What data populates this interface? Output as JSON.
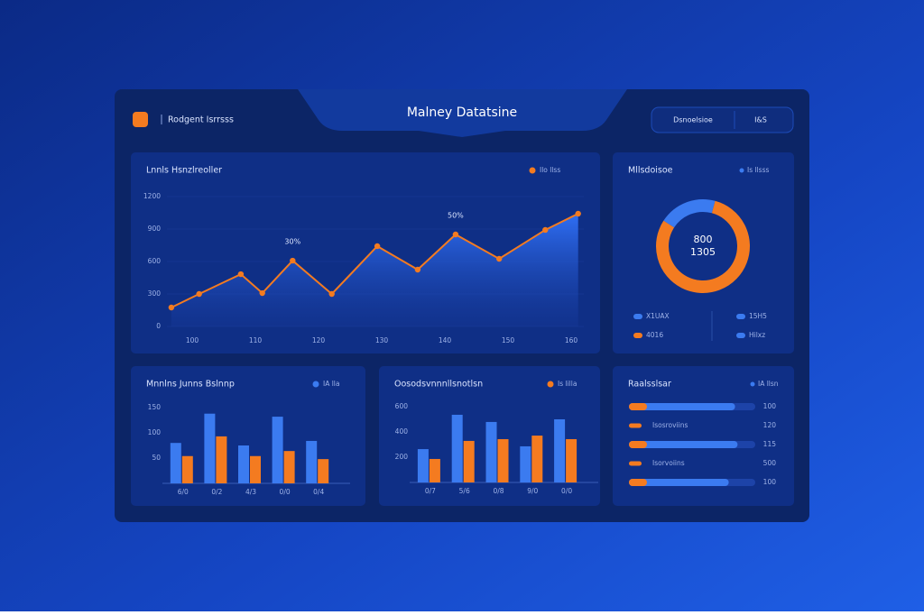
{
  "header": {
    "title": "Malney Datatsine",
    "brand": "Rodgent Isrrsss",
    "pill": [
      "Dsnoelsioe",
      "I&S"
    ]
  },
  "chart_data": [
    {
      "type": "line",
      "title": "Lnnls Hsnzlreoller",
      "series": [
        {
          "name": "Ilo llss",
          "color": "#f47b20",
          "x": [
            96.7,
            101.1,
            107.7,
            111.1,
            115.9,
            122.1,
            129.3,
            135.7,
            141.7,
            148.6,
            155.9,
            161.1
          ],
          "values": [
            175,
            300,
            483,
            308,
            608,
            300,
            742,
            525,
            850,
            625,
            892,
            1042
          ]
        }
      ],
      "xlim": [
        96,
        162
      ],
      "xticks": [
        100,
        110,
        120,
        130,
        140,
        150,
        160
      ],
      "ylim": [
        0,
        1200
      ],
      "yticks": [
        0,
        300,
        600,
        900,
        1200
      ],
      "grid": true,
      "annotations": [
        {
          "text": "30%",
          "x": 115.9,
          "y": 608
        },
        {
          "text": "50%",
          "x": 141.7,
          "y": 850
        }
      ]
    },
    {
      "type": "donut",
      "title": "Mllsdoisoe",
      "legend_label": "Is llsss",
      "values": [
        80,
        20
      ],
      "colors": [
        "#f47b20",
        "#3b7bf0"
      ],
      "center_text": [
        "800",
        "1305"
      ],
      "legend": [
        {
          "name": "X1UAX",
          "color": "#3b7bf0"
        },
        {
          "name": "15H5",
          "color": "#3b7bf0"
        },
        {
          "name": "4016",
          "color": "#f47b20"
        },
        {
          "name": "Hilxz",
          "color": "#3b7bf0"
        }
      ]
    },
    {
      "type": "bar",
      "title": "Mnnlns Junns Bslnnp",
      "categories": [
        "6/0",
        "0/2",
        "4/3",
        "0/0",
        "0/4"
      ],
      "series": [
        {
          "name": "IA lla",
          "color": "#3b7bf0",
          "values": [
            80,
            138,
            75,
            132,
            84
          ]
        },
        {
          "color": "#f47b20",
          "values": [
            54,
            93,
            54,
            64,
            48
          ]
        }
      ],
      "ylim": [
        0,
        150
      ],
      "yticks": [
        50,
        100,
        150
      ]
    },
    {
      "type": "bar",
      "title": "Oosodsvnnnllsnotlsn",
      "categories": [
        "0/7",
        "5/6",
        "0/8",
        "9/0",
        "0/0"
      ],
      "series": [
        {
          "color": "#3b7bf0",
          "values": [
            264,
            536,
            479,
            286,
            500
          ]
        },
        {
          "name": "Is lilla",
          "color": "#f47b20",
          "values": [
            186,
            329,
            343,
            371,
            343
          ]
        }
      ],
      "ylim": [
        0,
        600
      ],
      "yticks": [
        200,
        400,
        600
      ]
    },
    {
      "type": "progress",
      "title": "Raalsslsar",
      "legend_label": "IA llsn",
      "color": "#3b7bf0",
      "accent": "#f47b20",
      "xlim": [
        0,
        100
      ],
      "rows": [
        {
          "value": 84,
          "label": "100"
        },
        {
          "text": "Isosroviins",
          "label": "120"
        },
        {
          "value": 86,
          "label": "115"
        },
        {
          "text": "Isorvoiins",
          "label": "500"
        },
        {
          "value": 79,
          "label": "100"
        }
      ]
    }
  ]
}
